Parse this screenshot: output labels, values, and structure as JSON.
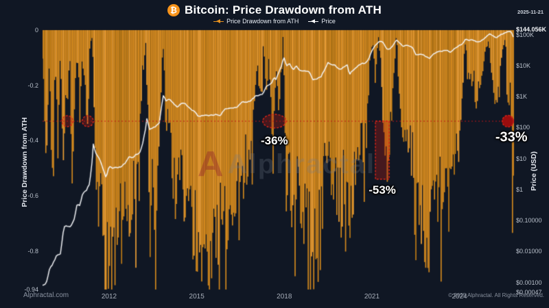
{
  "page": {
    "background": "#101724"
  },
  "header": {
    "btc_symbol": "₿",
    "title": "Bitcoin: Price Drawdown from ATH",
    "date": "2025-11-21"
  },
  "legend": [
    {
      "label": "Price Drawdown from ATH",
      "color": "#e8921e"
    },
    {
      "label": "Price",
      "color": "#ffffff"
    }
  ],
  "watermark": {
    "logo": "A",
    "text": "Alphractal"
  },
  "footer": {
    "left": "Alphractal.com",
    "right": "© 2025 Alphractal. All Rights Reserved."
  },
  "chart_data": {
    "type": "area",
    "title": "Bitcoin: Price Drawdown from ATH",
    "x_axis": {
      "range": [
        2009.72,
        2025.85
      ],
      "ticks": [
        "2012",
        "2015",
        "2018",
        "2021",
        "2024"
      ],
      "tick_values": [
        2012,
        2015,
        2018,
        2021,
        2024
      ]
    },
    "left_axis": {
      "label": "Price Drawdown from ATH",
      "range": [
        0,
        -0.94
      ],
      "ticks": [
        "0",
        "-0.2",
        "-0.4",
        "-0.6",
        "-0.8",
        "-0.94"
      ],
      "tick_values": [
        0,
        -0.2,
        -0.4,
        -0.6,
        -0.8,
        -0.94
      ]
    },
    "right_axis": {
      "label": "Price (USD)",
      "scale": "log",
      "ticks": [
        {
          "label": "$144.056K",
          "value": 144056,
          "highlight": true
        },
        {
          "label": "$100K",
          "value": 100000
        },
        {
          "label": "$10K",
          "value": 10000
        },
        {
          "label": "$1K",
          "value": 1000
        },
        {
          "label": "$100",
          "value": 100
        },
        {
          "label": "$10",
          "value": 10
        },
        {
          "label": "$1",
          "value": 1
        },
        {
          "label": "$0.10000",
          "value": 0.1
        },
        {
          "label": "$0.01000",
          "value": 0.01
        },
        {
          "label": "$0.00100",
          "value": 0.001
        },
        {
          "label": "$0.00047",
          "value": 0.00047
        }
      ]
    },
    "threshold": {
      "value": -0.33,
      "color": "#c21616",
      "style": "dotted"
    },
    "annotations": [
      {
        "type": "circle",
        "x": 2010.57,
        "y": -0.33,
        "label": ""
      },
      {
        "type": "circle",
        "x": 2011.27,
        "y": -0.33,
        "label": ""
      },
      {
        "type": "ellipse",
        "x": 2017.66,
        "y": -0.33,
        "label": "-36%",
        "label_size": 17
      },
      {
        "type": "rect",
        "x1": 2021.12,
        "x2": 2021.59,
        "y1": -0.33,
        "y2": -0.54,
        "label": "-53%",
        "label_size": 17
      },
      {
        "type": "dot",
        "x": 2025.66,
        "y": -0.33,
        "label": "-33%",
        "label_size": 20
      }
    ],
    "series": [
      {
        "name": "Price Drawdown from ATH",
        "axis": "left",
        "color": "#d2881e",
        "x": [
          2009.72,
          2009.85,
          2009.95,
          2010.05,
          2010.15,
          2010.25,
          2010.33,
          2010.42,
          2010.5,
          2010.57,
          2010.65,
          2010.75,
          2010.82,
          2010.9,
          2011.0,
          2011.08,
          2011.18,
          2011.27,
          2011.33,
          2011.42,
          2011.47,
          2011.52,
          2011.6,
          2011.68,
          2011.78,
          2011.88,
          2011.96,
          2012.05,
          2012.15,
          2012.25,
          2012.38,
          2012.5,
          2012.6,
          2012.72,
          2012.85,
          2012.95,
          2013.05,
          2013.15,
          2013.25,
          2013.32,
          2013.4,
          2013.5,
          2013.6,
          2013.7,
          2013.8,
          2013.87,
          2013.95,
          2014.05,
          2014.18,
          2014.3,
          2014.42,
          2014.55,
          2014.7,
          2014.85,
          2014.95,
          2015.06,
          2015.18,
          2015.3,
          2015.42,
          2015.55,
          2015.68,
          2015.8,
          2015.92,
          2016.05,
          2016.2,
          2016.35,
          2016.48,
          2016.6,
          2016.75,
          2016.88,
          2016.98,
          2017.08,
          2017.18,
          2017.28,
          2017.38,
          2017.48,
          2017.58,
          2017.66,
          2017.74,
          2017.82,
          2017.9,
          2017.97,
          2018.06,
          2018.16,
          2018.28,
          2018.4,
          2018.52,
          2018.64,
          2018.78,
          2018.9,
          2018.98,
          2019.1,
          2019.22,
          2019.35,
          2019.48,
          2019.58,
          2019.7,
          2019.82,
          2019.94,
          2020.05,
          2020.15,
          2020.22,
          2020.32,
          2020.45,
          2020.58,
          2020.7,
          2020.82,
          2020.92,
          2021.02,
          2021.12,
          2021.22,
          2021.3,
          2021.4,
          2021.5,
          2021.58,
          2021.66,
          2021.76,
          2021.84,
          2021.94,
          2022.04,
          2022.16,
          2022.28,
          2022.4,
          2022.52,
          2022.64,
          2022.76,
          2022.88,
          2022.96,
          2023.06,
          2023.18,
          2023.3,
          2023.42,
          2023.54,
          2023.66,
          2023.78,
          2023.9,
          2024.0,
          2024.1,
          2024.18,
          2024.28,
          2024.38,
          2024.48,
          2024.58,
          2024.68,
          2024.78,
          2024.88,
          2024.98,
          2025.08,
          2025.18,
          2025.28,
          2025.38,
          2025.48,
          2025.58,
          2025.66,
          2025.72,
          2025.78,
          2025.84
        ],
        "y": [
          -0.1,
          -0.45,
          -0.12,
          -0.55,
          -0.1,
          -0.48,
          -0.06,
          -0.52,
          -0.28,
          -0.33,
          -0.08,
          -0.62,
          -0.25,
          -0.04,
          -0.3,
          -0.1,
          -0.25,
          -0.33,
          -0.08,
          -0.02,
          -0.15,
          -0.4,
          -0.68,
          -0.55,
          -0.82,
          -0.93,
          -0.8,
          -0.86,
          -0.77,
          -0.82,
          -0.72,
          -0.78,
          -0.64,
          -0.68,
          -0.52,
          -0.58,
          -0.35,
          -0.12,
          -0.03,
          -0.3,
          -0.7,
          -0.55,
          -0.65,
          -0.45,
          -0.15,
          -0.02,
          -0.38,
          -0.28,
          -0.52,
          -0.62,
          -0.52,
          -0.56,
          -0.66,
          -0.7,
          -0.73,
          -0.85,
          -0.76,
          -0.8,
          -0.76,
          -0.81,
          -0.76,
          -0.72,
          -0.67,
          -0.66,
          -0.64,
          -0.6,
          -0.46,
          -0.52,
          -0.48,
          -0.4,
          -0.22,
          -0.1,
          -0.28,
          -0.06,
          -0.22,
          -0.12,
          -0.32,
          -0.36,
          -0.1,
          -0.3,
          -0.12,
          -0.01,
          -0.58,
          -0.46,
          -0.66,
          -0.55,
          -0.7,
          -0.64,
          -0.69,
          -0.72,
          -0.84,
          -0.79,
          -0.74,
          -0.58,
          -0.37,
          -0.5,
          -0.52,
          -0.58,
          -0.64,
          -0.55,
          -0.48,
          -0.81,
          -0.66,
          -0.54,
          -0.44,
          -0.41,
          -0.4,
          -0.14,
          -0.03,
          -0.22,
          -0.02,
          -0.1,
          -0.35,
          -0.53,
          -0.48,
          -0.33,
          -0.14,
          -0.02,
          -0.22,
          -0.42,
          -0.36,
          -0.42,
          -0.47,
          -0.72,
          -0.68,
          -0.72,
          -0.74,
          -0.77,
          -0.7,
          -0.61,
          -0.62,
          -0.57,
          -0.56,
          -0.62,
          -0.57,
          -0.46,
          -0.38,
          -0.3,
          -0.04,
          -0.12,
          -0.18,
          -0.16,
          -0.26,
          -0.22,
          -0.16,
          -0.08,
          -0.02,
          -0.12,
          -0.22,
          -0.3,
          -0.18,
          -0.06,
          -0.03,
          -0.33,
          -0.18,
          -0.3,
          -0.6
        ]
      },
      {
        "name": "Price",
        "axis": "right",
        "color": "#f4f6f9",
        "x": [
          2009.72,
          2009.85,
          2009.95,
          2010.08,
          2010.2,
          2010.33,
          2010.45,
          2010.55,
          2010.68,
          2010.8,
          2010.9,
          2011.0,
          2011.1,
          2011.22,
          2011.33,
          2011.42,
          2011.46,
          2011.52,
          2011.62,
          2011.72,
          2011.82,
          2011.9,
          2012.0,
          2012.12,
          2012.25,
          2012.4,
          2012.55,
          2012.68,
          2012.8,
          2012.92,
          2013.05,
          2013.15,
          2013.25,
          2013.3,
          2013.37,
          2013.48,
          2013.6,
          2013.72,
          2013.85,
          2013.95,
          2014.08,
          2014.2,
          2014.33,
          2014.48,
          2014.62,
          2014.78,
          2014.92,
          2015.06,
          2015.2,
          2015.35,
          2015.5,
          2015.65,
          2015.8,
          2015.95,
          2016.1,
          2016.25,
          2016.4,
          2016.55,
          2016.7,
          2016.85,
          2017.0,
          2017.12,
          2017.25,
          2017.4,
          2017.55,
          2017.65,
          2017.72,
          2017.82,
          2017.92,
          2017.98,
          2018.08,
          2018.18,
          2018.3,
          2018.42,
          2018.55,
          2018.7,
          2018.85,
          2018.98,
          2019.12,
          2019.25,
          2019.4,
          2019.5,
          2019.62,
          2019.75,
          2019.9,
          2020.05,
          2020.16,
          2020.23,
          2020.35,
          2020.5,
          2020.65,
          2020.8,
          2020.92,
          2021.02,
          2021.15,
          2021.28,
          2021.38,
          2021.5,
          2021.6,
          2021.72,
          2021.84,
          2021.95,
          2022.08,
          2022.22,
          2022.38,
          2022.52,
          2022.68,
          2022.82,
          2022.96,
          2023.1,
          2023.25,
          2023.4,
          2023.55,
          2023.7,
          2023.85,
          2023.98,
          2024.12,
          2024.2,
          2024.32,
          2024.45,
          2024.6,
          2024.75,
          2024.88,
          2024.98,
          2025.06,
          2025.16,
          2025.28,
          2025.4,
          2025.52,
          2025.64,
          2025.74,
          2025.8,
          2025.84
        ],
        "y": [
          0.0008,
          0.0009,
          0.0025,
          0.004,
          0.007,
          0.008,
          0.06,
          0.065,
          0.06,
          0.1,
          0.32,
          0.3,
          0.75,
          0.9,
          1.5,
          8,
          30,
          16,
          11,
          7.5,
          3.8,
          2.3,
          5.5,
          4.8,
          5.0,
          5.1,
          7.0,
          11.0,
          10.5,
          13.0,
          14.5,
          30,
          90,
          220,
          80,
          95,
          105,
          140,
          1100,
          720,
          800,
          580,
          450,
          590,
          570,
          380,
          330,
          215,
          240,
          235,
          240,
          255,
          235,
          370,
          420,
          415,
          455,
          660,
          620,
          720,
          990,
          1050,
          1150,
          2200,
          2500,
          4200,
          3400,
          6500,
          10500,
          19000,
          9500,
          11000,
          7200,
          9200,
          6500,
          6400,
          6400,
          3400,
          3700,
          4100,
          8000,
          12300,
          10200,
          9800,
          7200,
          8800,
          10200,
          5000,
          7000,
          9200,
          11400,
          11900,
          19000,
          33000,
          48000,
          60000,
          56000,
          34000,
          33000,
          44000,
          66000,
          51000,
          41000,
          44000,
          39000,
          20500,
          23500,
          19800,
          16300,
          22500,
          27500,
          28500,
          30000,
          26500,
          35000,
          43500,
          50000,
          69000,
          64000,
          66000,
          57500,
          61000,
          75000,
          97000,
          102000,
          85000,
          79000,
          96000,
          107000,
          117000,
          123000,
          104000,
          84056
        ]
      }
    ]
  }
}
